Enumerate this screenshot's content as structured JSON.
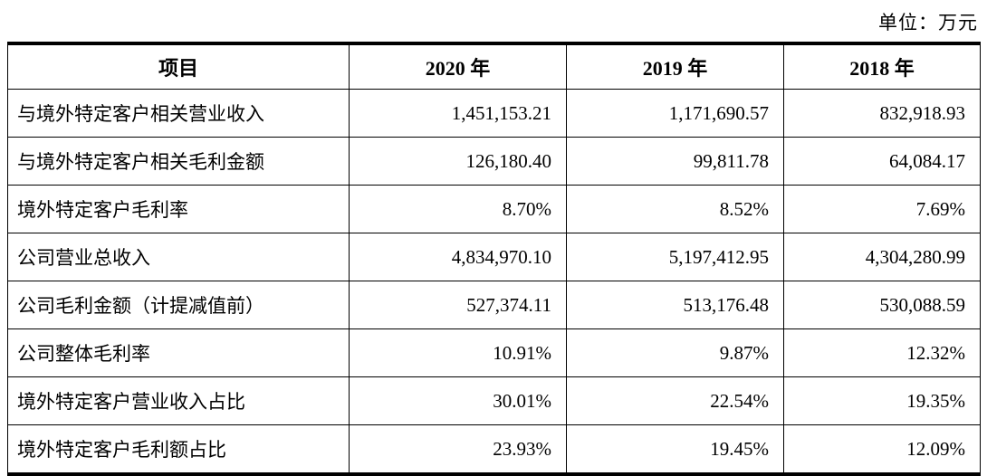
{
  "unit_label": "单位：万元",
  "table": {
    "headers": [
      "项目",
      "2020 年",
      "2019 年",
      "2018 年"
    ],
    "rows": [
      {
        "label": "与境外特定客户相关营业收入",
        "values": [
          "1,451,153.21",
          "1,171,690.57",
          "832,918.93"
        ]
      },
      {
        "label": "与境外特定客户相关毛利金额",
        "values": [
          "126,180.40",
          "99,811.78",
          "64,084.17"
        ]
      },
      {
        "label": "境外特定客户毛利率",
        "values": [
          "8.70%",
          "8.52%",
          "7.69%"
        ]
      },
      {
        "label": "公司营业总收入",
        "values": [
          "4,834,970.10",
          "5,197,412.95",
          "4,304,280.99"
        ]
      },
      {
        "label": "公司毛利金额（计提减值前）",
        "values": [
          "527,374.11",
          "513,176.48",
          "530,088.59"
        ]
      },
      {
        "label": "公司整体毛利率",
        "values": [
          "10.91%",
          "9.87%",
          "12.32%"
        ]
      },
      {
        "label": "境外特定客户营业收入占比",
        "values": [
          "30.01%",
          "22.54%",
          "19.35%"
        ]
      },
      {
        "label": "境外特定客户毛利额占比",
        "values": [
          "23.93%",
          "19.45%",
          "12.09%"
        ]
      }
    ]
  }
}
